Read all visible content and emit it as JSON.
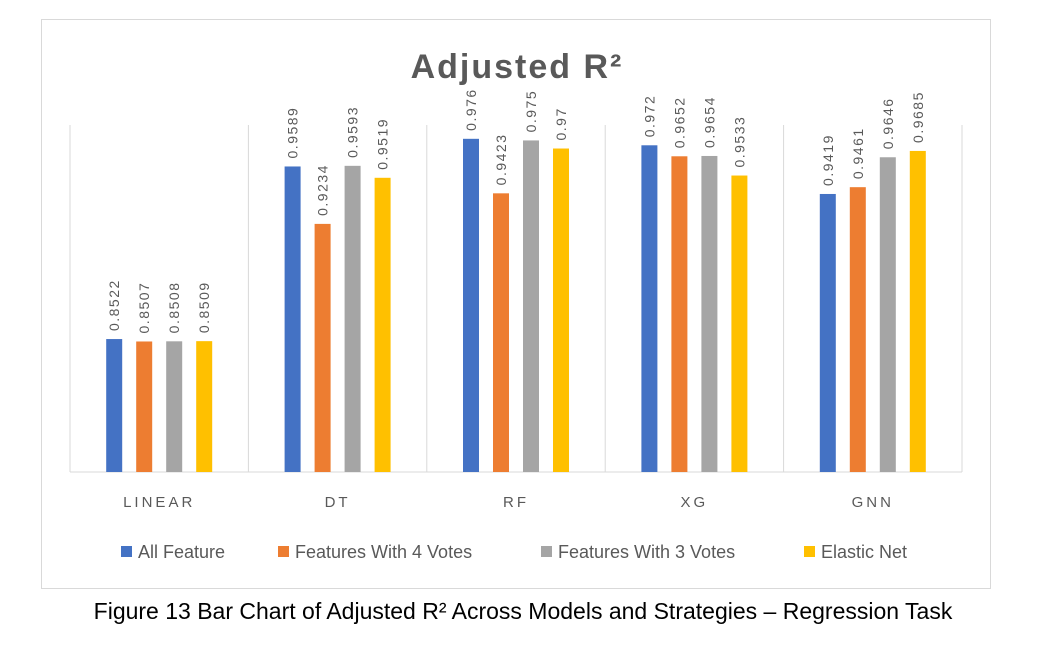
{
  "chart_data": {
    "type": "bar",
    "title": "Adjusted R²",
    "xlabel": "",
    "ylabel": "",
    "categories": [
      "LINEAR",
      "DT",
      "RF",
      "XG",
      "GNN"
    ],
    "series": [
      {
        "name": "All Feature",
        "color": "#4472C4",
        "values": [
          0.8522,
          0.9589,
          0.976,
          0.972,
          0.9419
        ],
        "labels": [
          "0.8522",
          "0.9589",
          "0.976",
          "0.972",
          "0.9419"
        ]
      },
      {
        "name": "Features With 4 Votes",
        "color": "#ED7D31",
        "values": [
          0.8507,
          0.9234,
          0.9423,
          0.9652,
          0.9461
        ],
        "labels": [
          "0.8507",
          "0.9234",
          "0.9423",
          "0.9652",
          "0.9461"
        ]
      },
      {
        "name": "Features With 3 Votes",
        "color": "#A5A5A5",
        "values": [
          0.8508,
          0.9593,
          0.975,
          0.9654,
          0.9646
        ],
        "labels": [
          "0.8508",
          "0.9593",
          "0.975",
          "0.9654",
          "0.9646"
        ]
      },
      {
        "name": "Elastic Net",
        "color": "#FFC000",
        "values": [
          0.8509,
          0.9519,
          0.97,
          0.9533,
          0.9685
        ],
        "labels": [
          "0.8509",
          "0.9519",
          "0.97",
          "0.9533",
          "0.9685"
        ]
      }
    ],
    "ylim": [
      0.77,
      1.0
    ],
    "grid": false,
    "legend": "bottom"
  },
  "caption": "Figure 13 Bar Chart of Adjusted R² Across Models and Strategies – Regression Task"
}
